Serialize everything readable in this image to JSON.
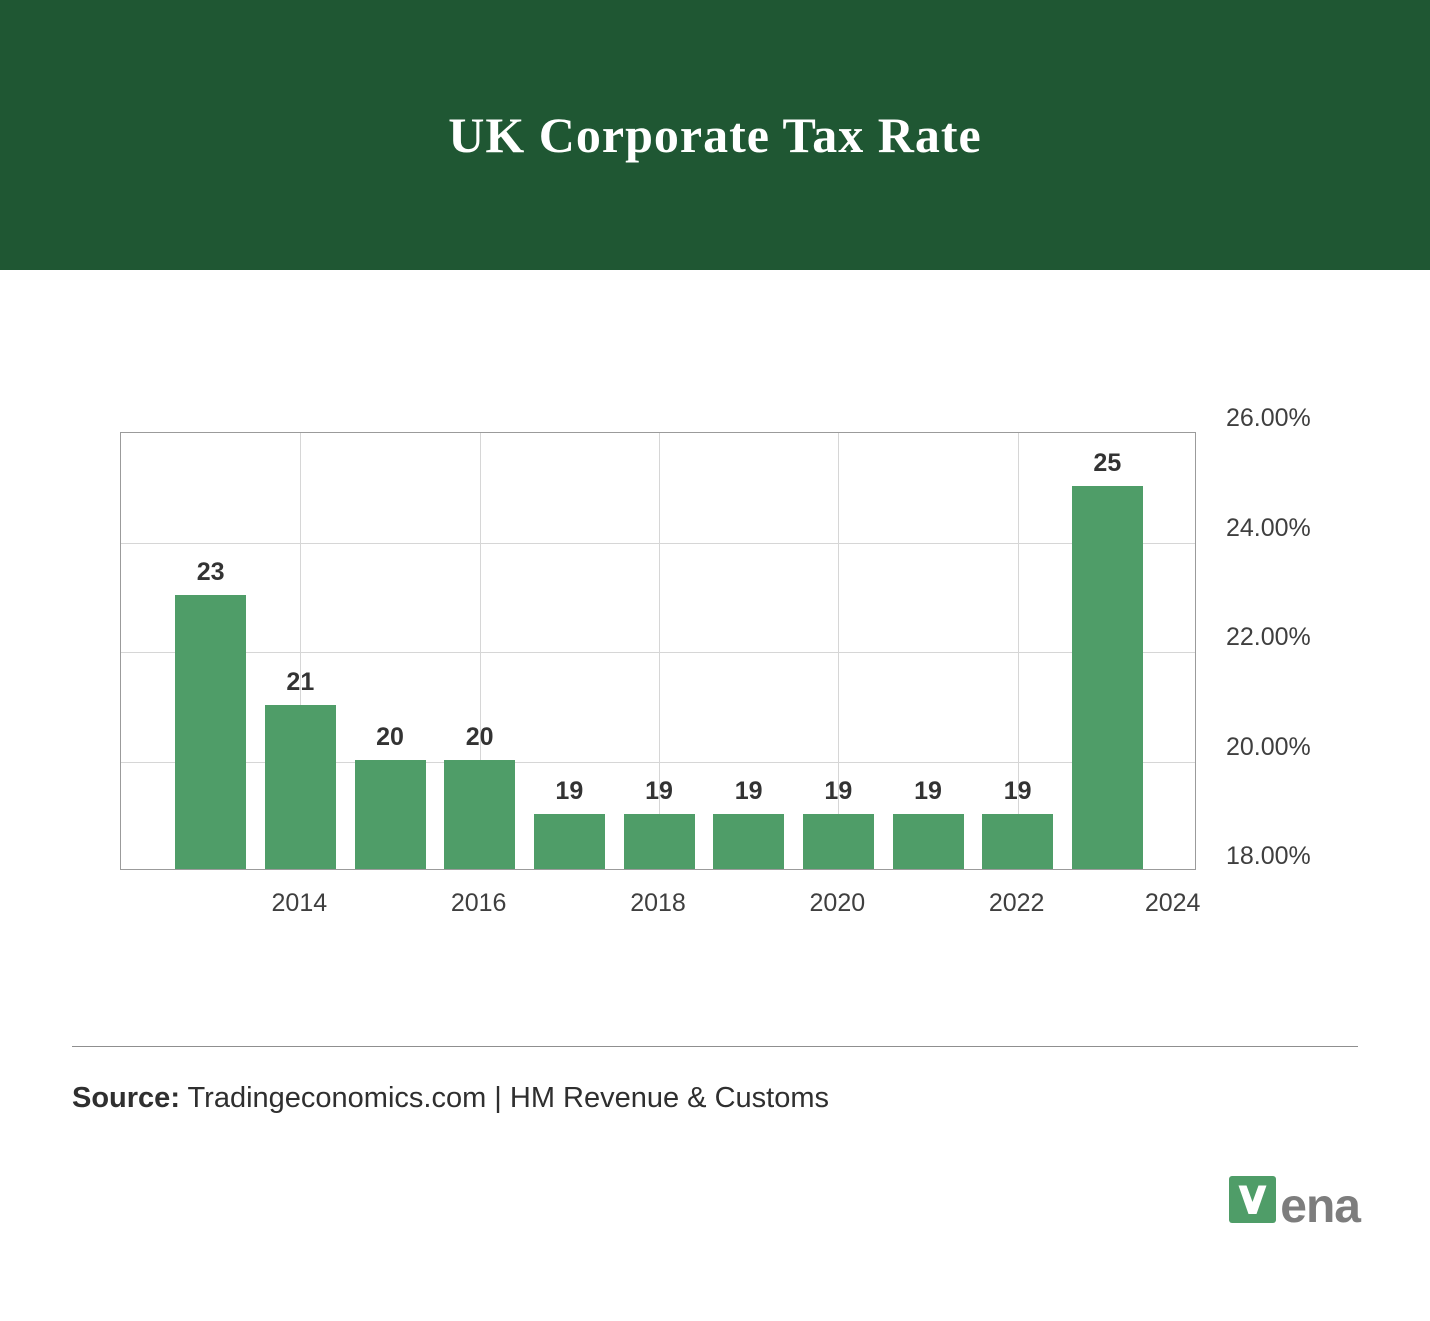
{
  "header": {
    "title": "UK Corporate Tax Rate"
  },
  "chart_data": {
    "type": "bar",
    "title": "UK Corporate Tax Rate",
    "categories": [
      2013,
      2014,
      2015,
      2016,
      2017,
      2018,
      2019,
      2020,
      2021,
      2022,
      2023
    ],
    "values": [
      23,
      21,
      20,
      20,
      19,
      19,
      19,
      19,
      19,
      19,
      25
    ],
    "bar_value_labels": [
      "23",
      "21",
      "20",
      "20",
      "19",
      "19",
      "19",
      "19",
      "19",
      "19",
      "25"
    ],
    "unit": "%",
    "xlim": [
      2012,
      2024
    ],
    "ylim": [
      18,
      26
    ],
    "x_ticks": [
      {
        "label": "2014",
        "year": 2014
      },
      {
        "label": "2016",
        "year": 2016
      },
      {
        "label": "2018",
        "year": 2018
      },
      {
        "label": "2020",
        "year": 2020
      },
      {
        "label": "2022",
        "year": 2022
      },
      {
        "label": "2024",
        "year": 2024
      }
    ],
    "y_ticks": [
      {
        "label": "26.00%",
        "value": 26
      },
      {
        "label": "24.00%",
        "value": 24
      },
      {
        "label": "22.00%",
        "value": 22
      },
      {
        "label": "20.00%",
        "value": 20
      },
      {
        "label": "18.00%",
        "value": 18
      }
    ],
    "grid": true,
    "legend": false
  },
  "footer": {
    "source_label": "Source:",
    "source_text": " Tradingeconomics.com | HM Revenue & Customs"
  },
  "logo": {
    "text": "ena"
  },
  "colors": {
    "header_bg": "#1F5733",
    "header_text": "#FFFFFF",
    "bar": "#4F9D68",
    "grid": "#D6D6D6",
    "axis_border": "#9B9B9B",
    "tick_text": "#3F3F3F",
    "value_text": "#333333",
    "separator": "#8F8F8F",
    "source_text": "#2F2F2F",
    "logo_text": "#7D7D7D"
  }
}
